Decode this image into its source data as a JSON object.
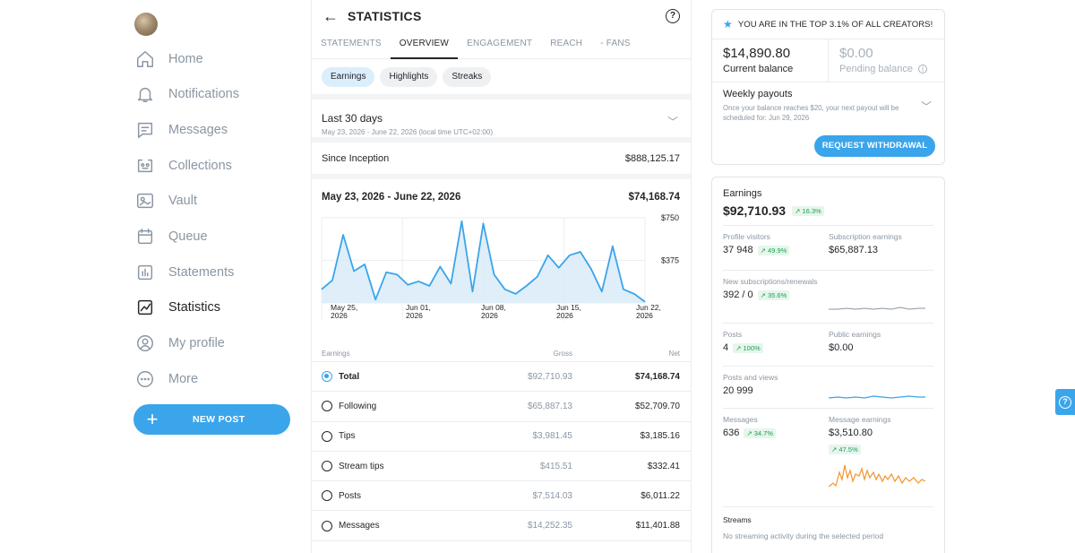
{
  "sidebar": {
    "items": [
      {
        "label": "Home",
        "icon": "home-icon"
      },
      {
        "label": "Notifications",
        "icon": "bell-icon"
      },
      {
        "label": "Messages",
        "icon": "message-icon"
      },
      {
        "label": "Collections",
        "icon": "collections-icon"
      },
      {
        "label": "Vault",
        "icon": "vault-icon"
      },
      {
        "label": "Queue",
        "icon": "calendar-icon"
      },
      {
        "label": "Statements",
        "icon": "statements-icon"
      },
      {
        "label": "Statistics",
        "icon": "statistics-icon"
      },
      {
        "label": "My profile",
        "icon": "profile-icon"
      },
      {
        "label": "More",
        "icon": "more-icon"
      }
    ],
    "active": "Statistics",
    "new_post_label": "NEW POST"
  },
  "center": {
    "title": "STATISTICS",
    "tabs": [
      "STATEMENTS",
      "OVERVIEW",
      "ENGAGEMENT",
      "REACH",
      "- FANS"
    ],
    "active_tab": "OVERVIEW",
    "chips": [
      "Earnings",
      "Highlights",
      "Streaks"
    ],
    "active_chip": "Earnings",
    "period": {
      "label": "Last 30 days",
      "detail": "May 23, 2026 - June 22, 2026 (local time UTC+02:00)"
    },
    "since_inception": {
      "label": "Since Inception",
      "value": "$888,125.17"
    },
    "range": {
      "label": "May 23, 2026 - June 22, 2026",
      "value": "$74,168.74"
    },
    "table": {
      "headers": [
        "Earnings",
        "Gross",
        "Net"
      ],
      "rows": [
        {
          "label": "Total",
          "gross": "$92,710.93",
          "net": "$74,168.74"
        },
        {
          "label": "Following",
          "gross": "$65,887.13",
          "net": "$52,709.70"
        },
        {
          "label": "Tips",
          "gross": "$3,981.45",
          "net": "$3,185.16"
        },
        {
          "label": "Stream tips",
          "gross": "$415.51",
          "net": "$332.41"
        },
        {
          "label": "Posts",
          "gross": "$7,514.03",
          "net": "$6,011.22"
        },
        {
          "label": "Messages",
          "gross": "$14,252.35",
          "net": "$11,401.88"
        }
      ]
    }
  },
  "chart_data": {
    "type": "area",
    "title": "",
    "xlabel": "",
    "ylabel": "",
    "x_ticks": [
      "May 25, 2026",
      "Jun 01, 2026",
      "Jun 08, 2026",
      "Jun 15, 2026",
      "Jun 22, 2026"
    ],
    "y_ticks": [
      "$750",
      "$375"
    ],
    "ylim": [
      0,
      750
    ],
    "series": [
      {
        "values": [
          120,
          200,
          600,
          280,
          340,
          30,
          270,
          250,
          160,
          190,
          150,
          320,
          170,
          720,
          100,
          700,
          250,
          120,
          80,
          150,
          230,
          420,
          310,
          420,
          450,
          300,
          100,
          500,
          120,
          80,
          10
        ]
      }
    ],
    "color": "#3aa5ea"
  },
  "right": {
    "banner": "YOU ARE IN THE TOP 3.1% OF ALL CREATORS!",
    "current_balance": {
      "value": "$14,890.80",
      "label": "Current balance"
    },
    "pending_balance": {
      "value": "$0.00",
      "label": "Pending balance"
    },
    "weekly": {
      "title": "Weekly payouts",
      "detail": "Once your balance reaches $20, your next payout will be scheduled for: Jun 29, 2026"
    },
    "withdraw_label": "REQUEST WITHDRAWAL",
    "earnings": {
      "title": "Earnings",
      "value": "$92,710.93",
      "change": "↗ 16.3%"
    },
    "stats": {
      "profile_visitors": {
        "label": "Profile visitors",
        "value": "37 948",
        "change": "↗ 49.9%"
      },
      "subscription_earnings": {
        "label": "Subscription earnings",
        "value": "$65,887.13"
      },
      "new_subs": {
        "label": "New subscriptions/renewals",
        "value": "392 / 0",
        "change": "↗ 35.6%"
      },
      "posts": {
        "label": "Posts",
        "value": "4",
        "change": "↗ 100%"
      },
      "public_earnings": {
        "label": "Public earnings",
        "value": "$0.00"
      },
      "posts_views": {
        "label": "Posts and views",
        "value": "20 999"
      },
      "messages": {
        "label": "Messages",
        "value": "636",
        "change": "↗ 34.7%"
      },
      "message_earnings": {
        "label": "Message earnings",
        "value": "$3,510.80",
        "change": "↗ 47.5%"
      }
    },
    "streams": {
      "title": "Streams",
      "detail": "No streaming activity during the selected period"
    }
  }
}
